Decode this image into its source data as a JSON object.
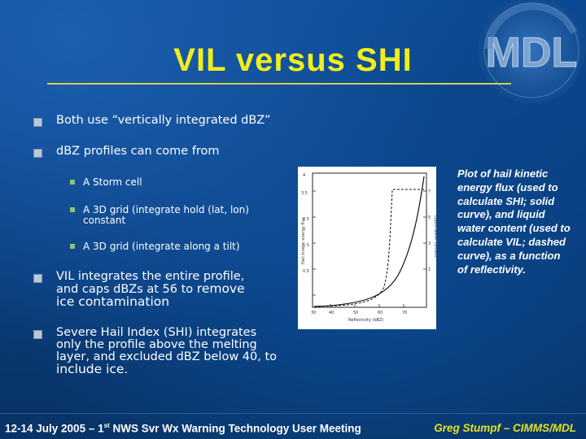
{
  "slide": {
    "title": "VIL versus SHI",
    "bullets": [
      {
        "text": "Both use “vertically integrated dBZ”"
      },
      {
        "text": "dBZ profiles can come from",
        "sub": [
          {
            "text": "A Storm cell"
          },
          {
            "line1": "A 3D grid (integrate hold (lat, lon)",
            "line2": "constant"
          },
          {
            "text": "A 3D grid (integrate along a tilt)"
          }
        ]
      },
      {
        "line1": "VIL integrates the entire profile,",
        "line2_a": "and caps dBZs at 56 to ",
        "line2_b": "remove",
        "line3": "ice contamination"
      },
      {
        "line1": "Severe Hail Index (SHI) integrates",
        "line2": "only the profile above the melting",
        "line3": "layer, and excluded dBZ below 40, to",
        "line4": "include ice",
        "line4_end": "."
      }
    ],
    "caption": "Plot of hail kinetic energy flux (used to calculate SHI; solid curve), and liquid water content (used to calculate VIL; dashed curve), as a function of reflectivity.",
    "footer_left": {
      "pre": "12-14 July 2005 – 1",
      "sup": "st",
      "post": " NWS Svr Wx Warning Technology User Meeting"
    },
    "footer_right": "Greg Stumpf – CIMMS/MDL",
    "logo_text": "MDL"
  },
  "colors": {
    "title": "#f2ee1c",
    "footer_right": "#e6e21c",
    "background": "#0a3f80"
  }
}
